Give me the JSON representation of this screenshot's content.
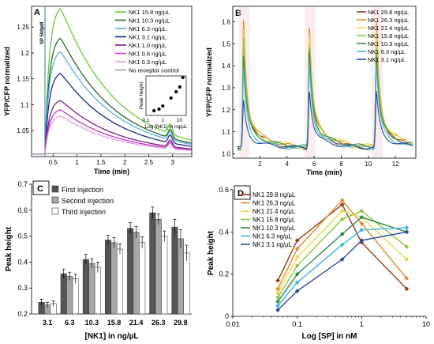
{
  "chart_data": [
    {
      "panel": "A",
      "type": "line",
      "xlabel": "Time (min)",
      "ylabel": "YFP/CFP normalized",
      "xlim": [
        0.05,
        3.4
      ],
      "ylim": [
        1.0,
        1.29
      ],
      "xticks": [
        0.5,
        1,
        1.5,
        2,
        2.5,
        3
      ],
      "yticks": [
        1.05,
        1.1,
        1.15,
        1.2,
        1.25
      ],
      "vline_label": "SP 500pM",
      "peak_times": [
        0.65,
        2.95
      ],
      "legend": "top-right",
      "series": [
        {
          "name": "NK1 15.8 ng/µL",
          "color": "#66cc33",
          "peak": 1.285,
          "second_peak": 1.024
        },
        {
          "name": "NK1 10.3 ng/µL",
          "color": "#1f6b1f",
          "peak": 1.228,
          "second_peak": 1.022
        },
        {
          "name": "NK1 6.3 ng/µL",
          "color": "#55aee8",
          "peak": 1.202,
          "second_peak": 1.021
        },
        {
          "name": "NK1 3.1 ng/µL",
          "color": "#1a2b8a",
          "peak": 1.16,
          "second_peak": 1.02
        },
        {
          "name": "NK1 1.0 ng/µL",
          "color": "#7a1f8a",
          "peak": 1.108,
          "second_peak": 1.018
        },
        {
          "name": "NK1 0.6 ng/µL",
          "color": "#c436c4",
          "peak": 1.09,
          "second_peak": 1.016
        },
        {
          "name": "NK1 0.3 ng/µL",
          "color": "#e79be7",
          "peak": 1.078,
          "second_peak": 1.015
        },
        {
          "name": "No receptor control",
          "color": "#999999",
          "peak": 1.006,
          "second_peak": 1.006
        }
      ],
      "inset": {
        "type": "scatter",
        "xlabel": "Log [NK1] in ng/µL",
        "ylabel": "Peak height",
        "xtick_labels": [
          "0.1",
          "1",
          "10"
        ],
        "x": [
          0.3,
          0.6,
          1.0,
          3.1,
          6.3,
          10.3,
          15.8
        ],
        "y": [
          0.08,
          0.09,
          0.11,
          0.16,
          0.2,
          0.23,
          0.29
        ]
      }
    },
    {
      "panel": "B",
      "type": "line",
      "xlabel": "Time (min)",
      "ylabel": "YFP/CFP normalized",
      "xlim": [
        0,
        13.5
      ],
      "ylim": [
        0.98,
        1.67
      ],
      "xticks": [
        2,
        4,
        6,
        8,
        10,
        12
      ],
      "yticks": [
        1.0,
        1.1,
        1.2,
        1.3,
        1.4,
        1.5,
        1.6
      ],
      "peak_times": [
        0.8,
        5.65,
        10.6
      ],
      "legend": "top-right",
      "series": [
        {
          "name": "NK1 29.8 ng/µL",
          "color": "#9b3a1a",
          "peaks": [
            1.6,
            1.57,
            1.55
          ]
        },
        {
          "name": "NK1 26.3 ng/µL",
          "color": "#e08a2a",
          "peaks": [
            1.62,
            1.6,
            1.6
          ]
        },
        {
          "name": "NK1 21.4 ng/µL",
          "color": "#e8d84a",
          "peaks": [
            1.58,
            1.56,
            1.56
          ]
        },
        {
          "name": "NK1 15.8 ng/µL",
          "color": "#8cc63f",
          "peaks": [
            1.54,
            1.5,
            1.49
          ]
        },
        {
          "name": "NK1 10.3 ng/µL",
          "color": "#2a8a4a",
          "peaks": [
            1.45,
            1.48,
            1.46
          ]
        },
        {
          "name": "NK1 6.3 ng/µL",
          "color": "#3fb6e0",
          "peaks": [
            1.38,
            1.42,
            1.4
          ]
        },
        {
          "name": "NK1 3.1 ng/µL",
          "color": "#2a4aa0",
          "peaks": [
            1.24,
            1.3,
            1.28
          ]
        }
      ]
    },
    {
      "panel": "C",
      "type": "bar",
      "xlabel": "[NK1] in ng/µL",
      "ylabel": "Peak height",
      "ylim": [
        0.2,
        0.7
      ],
      "yticks": [
        0.2,
        0.3,
        0.4,
        0.5,
        0.6,
        0.7
      ],
      "categories": [
        "3.1",
        "6.3",
        "10.3",
        "15.8",
        "21.4",
        "26.3",
        "29.8"
      ],
      "legend": "top-left",
      "series": [
        {
          "name": "First injection",
          "color": "#555555",
          "values": [
            0.245,
            0.355,
            0.41,
            0.485,
            0.53,
            0.59,
            0.535
          ],
          "errors": [
            0.012,
            0.018,
            0.02,
            0.018,
            0.022,
            0.022,
            0.03
          ]
        },
        {
          "name": "Second injection",
          "color": "#a6a6a6",
          "values": [
            0.235,
            0.345,
            0.395,
            0.475,
            0.515,
            0.565,
            0.49
          ],
          "errors": [
            0.01,
            0.016,
            0.018,
            0.02,
            0.022,
            0.02,
            0.035
          ]
        },
        {
          "name": "Third injection",
          "color": "#ffffff",
          "values": [
            0.24,
            0.335,
            0.38,
            0.45,
            0.475,
            0.5,
            0.435
          ],
          "errors": [
            0.01,
            0.018,
            0.02,
            0.02,
            0.022,
            0.02,
            0.03
          ]
        }
      ]
    },
    {
      "panel": "D",
      "type": "line",
      "xscale": "log",
      "xlabel": "Log [SP] in nM",
      "ylabel": "Peak height",
      "xlim": [
        0.01,
        10
      ],
      "ylim": [
        0,
        0.6
      ],
      "yticks": [
        0,
        0.2,
        0.4,
        0.6
      ],
      "xtick_labels": [
        "0.01",
        "0.1",
        "1",
        "10"
      ],
      "legend": "top-left",
      "x": [
        0.05,
        0.1,
        0.5,
        1,
        5
      ],
      "series": [
        {
          "name": "NK1 29.8 ng/µL",
          "color": "#9b3a1a",
          "values": [
            0.17,
            0.36,
            0.53,
            0.35,
            0.13
          ]
        },
        {
          "name": "NK1 26.3 ng/µL",
          "color": "#e08a2a",
          "values": [
            0.13,
            0.32,
            0.55,
            0.44,
            0.18
          ]
        },
        {
          "name": "NK1 21.4 ng/µL",
          "color": "#e8d84a",
          "values": [
            0.11,
            0.28,
            0.5,
            0.47,
            0.27
          ]
        },
        {
          "name": "NK1 15.8 ng/µL",
          "color": "#8cc63f",
          "values": [
            0.09,
            0.24,
            0.46,
            0.5,
            0.33
          ]
        },
        {
          "name": "NK1 10.3 ng/µL",
          "color": "#2a8a4a",
          "values": [
            0.07,
            0.2,
            0.39,
            0.47,
            0.4
          ]
        },
        {
          "name": "NK1 6.3 ng/µL",
          "color": "#3fb6e0",
          "values": [
            0.05,
            0.16,
            0.34,
            0.41,
            0.42
          ]
        },
        {
          "name": "NK1 3.1 ng/µL",
          "color": "#2a4aa0",
          "values": [
            0.03,
            0.12,
            0.27,
            0.36,
            0.4
          ]
        }
      ]
    }
  ]
}
